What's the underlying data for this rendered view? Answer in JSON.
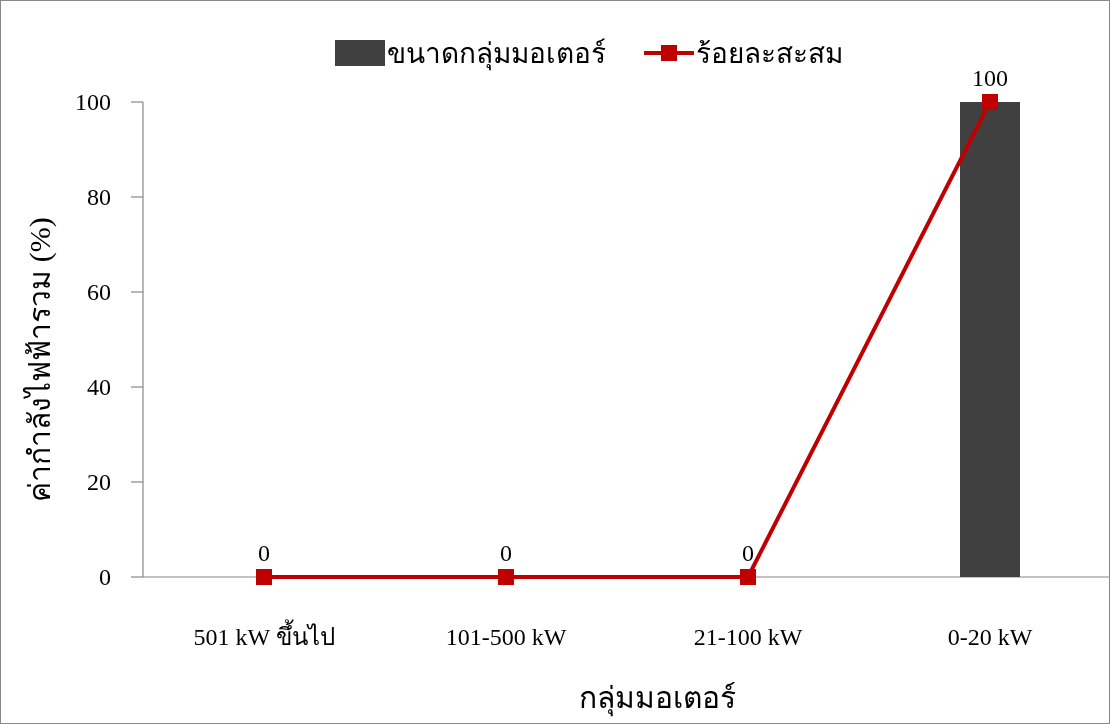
{
  "chart_data": {
    "type": "bar",
    "xlabel": "กลุ่มมอเตอร์",
    "ylabel": "ค่ากำลังไฟฟ้ารวม (%)",
    "categories": [
      "501 kW ขึ้นไป",
      "101-500 kW",
      "21-100 kW",
      "0-20 kW"
    ],
    "series": [
      {
        "name": "ขนาดกลุ่มมอเตอร์",
        "color": "#404040",
        "values": [
          0,
          0,
          0,
          100
        ]
      },
      {
        "name": "ร้อยละสะสม",
        "type": "line",
        "color": "#c00000",
        "marker": "square",
        "values": [
          0,
          0,
          0,
          100
        ],
        "value_labels": [
          "0",
          "0",
          "0",
          "100"
        ]
      }
    ],
    "ylim": [
      0,
      100
    ],
    "yticks": [
      0,
      20,
      40,
      60,
      80,
      100
    ],
    "legend": "top",
    "grid": false
  }
}
